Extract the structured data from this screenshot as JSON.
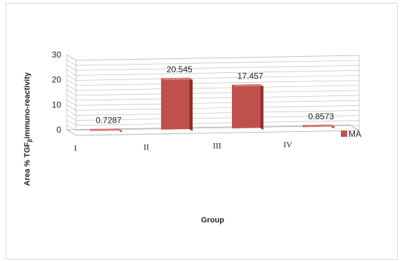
{
  "chart_data": {
    "type": "bar",
    "style": "3d-column",
    "categories": [
      "I",
      "II",
      "III",
      "IV"
    ],
    "series": [
      {
        "name": "MA",
        "values": [
          0.7287,
          20.545,
          17.457,
          0.8573
        ],
        "labels": [
          "0.7287",
          "20.545",
          "17.457",
          "0.8573"
        ]
      }
    ],
    "ylabel_main": "Area % TGF",
    "ylabel_sub": "β",
    "ylabel_tail": "immuno-reactivity",
    "xlabel": "Group",
    "ylim": [
      0,
      30
    ],
    "yticks": [
      "0",
      "10",
      "20",
      "30"
    ],
    "grid": true,
    "legend_position": "right",
    "colors": {
      "bar_front": "#c0504d",
      "bar_side": "#8e2f2c",
      "bar_top": "#d97a77",
      "grid": "#bfbfbf",
      "floor": "#ffffff"
    }
  }
}
